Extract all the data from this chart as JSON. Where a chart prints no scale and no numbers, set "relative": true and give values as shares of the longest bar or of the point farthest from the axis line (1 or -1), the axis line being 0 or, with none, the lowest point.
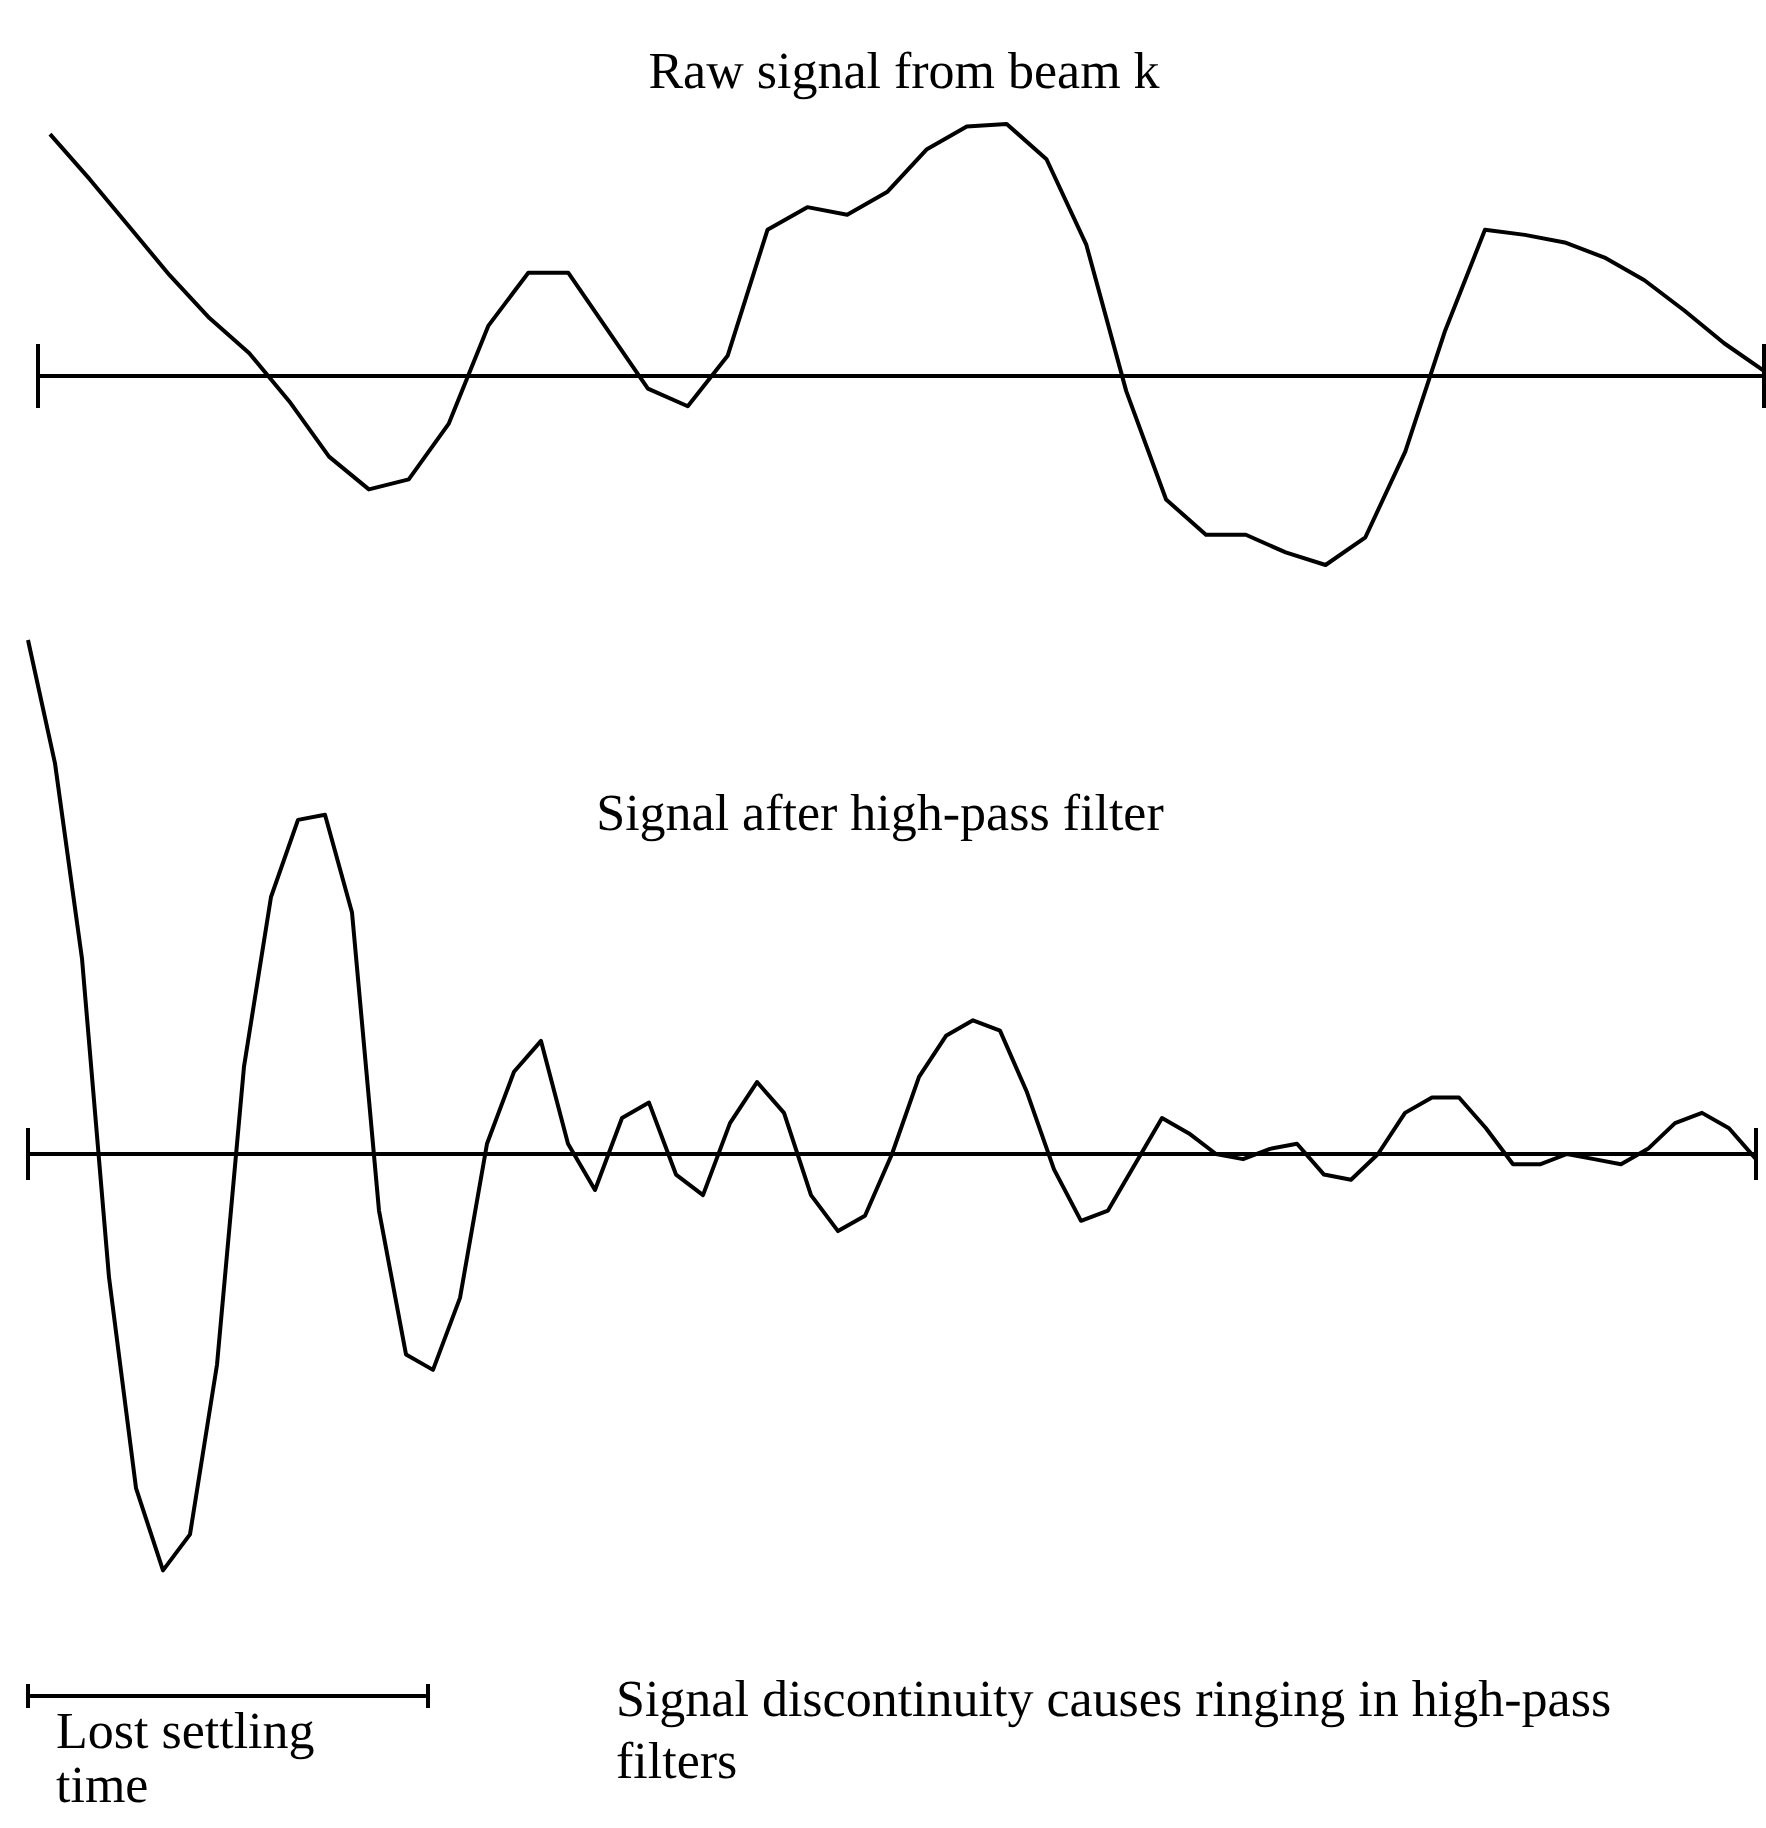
{
  "chart_data": [
    {
      "type": "line",
      "title": "Raw signal from beam k",
      "relative": true,
      "marker": "none",
      "line_style": "solid",
      "categories": [
        null,
        null,
        null,
        null,
        null,
        null,
        null,
        null,
        null,
        null,
        null,
        null,
        null,
        null,
        null,
        null,
        null,
        null,
        null,
        null,
        null,
        null,
        null,
        null,
        null,
        null,
        null,
        null,
        null,
        null,
        null,
        null,
        null,
        null,
        null,
        null,
        null,
        null,
        null,
        null,
        null,
        null,
        null,
        null
      ],
      "series": [
        {
          "color": "#000000",
          "values": [
            0.96,
            0.78,
            0.59,
            0.4,
            0.23,
            0.09,
            -0.1,
            -0.32,
            -0.45,
            -0.41,
            -0.19,
            0.2,
            0.41,
            0.41,
            0.18,
            -0.05,
            -0.12,
            0.08,
            0.58,
            0.67,
            0.64,
            0.73,
            0.9,
            0.99,
            1,
            0.86,
            0.52,
            -0.06,
            -0.49,
            -0.63,
            -0.63,
            -0.7,
            -0.75,
            -0.64,
            -0.3,
            0.18,
            0.58,
            0.56,
            0.53,
            0.47,
            0.38,
            0.26,
            0.13,
            0.02
          ]
        }
      ]
    },
    {
      "type": "line",
      "title": "Signal after high-pass filter",
      "relative": true,
      "marker": "none",
      "line_style": "solid",
      "categories": [
        null,
        null,
        null,
        null,
        null,
        null,
        null,
        null,
        null,
        null,
        null,
        null,
        null,
        null,
        null,
        null,
        null,
        null,
        null,
        null,
        null,
        null,
        null,
        null,
        null,
        null,
        null,
        null,
        null,
        null,
        null,
        null,
        null,
        null,
        null,
        null,
        null,
        null,
        null,
        null,
        null,
        null,
        null,
        null,
        null,
        null,
        null,
        null,
        null,
        null,
        null,
        null,
        null,
        null,
        null,
        null,
        null,
        null,
        null,
        null,
        null,
        null,
        null,
        null,
        null
      ],
      "series": [
        {
          "color": "#000000",
          "values": [
            1,
            0.76,
            0.38,
            -0.24,
            -0.65,
            -0.81,
            -0.74,
            -0.41,
            0.17,
            0.5,
            0.65,
            0.66,
            0.47,
            -0.11,
            -0.39,
            -0.42,
            -0.28,
            0.02,
            0.16,
            0.22,
            0.02,
            -0.07,
            0.07,
            0.1,
            -0.04,
            -0.08,
            0.06,
            0.14,
            0.08,
            -0.08,
            -0.15,
            -0.12,
            0.0,
            0.15,
            0.23,
            0.26,
            0.24,
            0.12,
            -0.03,
            -0.13,
            -0.11,
            -0.02,
            0.07,
            0.04,
            0.0,
            -0.01,
            0.01,
            0.02,
            -0.04,
            -0.05,
            0.0,
            0.08,
            0.11,
            0.11,
            0.05,
            -0.02,
            -0.02,
            0,
            -0.01,
            -0.02,
            0.01,
            0.06,
            0.08,
            0.05,
            -0.01
          ]
        }
      ],
      "annotations": [
        "Lost settling time",
        "Signal discontinuity causes ringing in high-pass filters"
      ]
    }
  ]
}
